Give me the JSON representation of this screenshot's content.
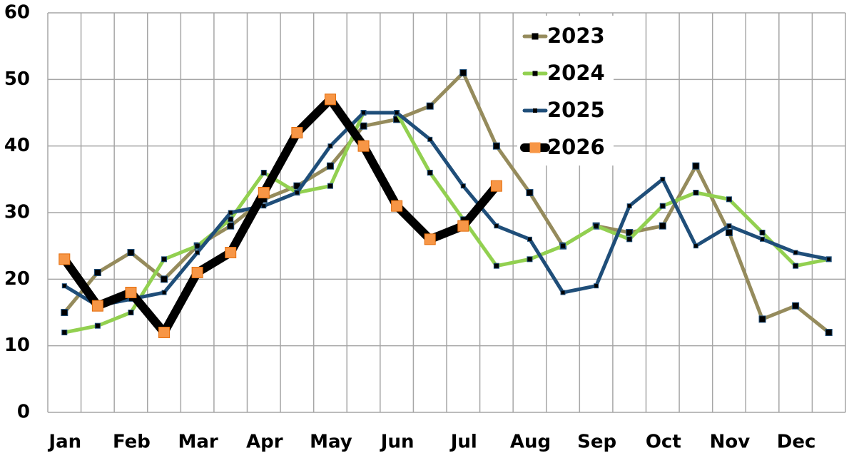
{
  "chart_data": {
    "type": "line",
    "categories": [
      "Jan",
      null,
      "Feb",
      null,
      "Mar",
      null,
      "Apr",
      null,
      "May",
      null,
      "Jun",
      null,
      "Jul",
      null,
      "Aug",
      null,
      "Sep",
      null,
      "Oct",
      null,
      "Nov",
      null,
      "Dec",
      null
    ],
    "series": [
      {
        "name": "2023",
        "color": "#958b5c",
        "line_width": 5,
        "marker_color": "#000000",
        "marker_size": 9,
        "values": [
          15,
          21,
          24,
          20,
          25,
          28,
          32,
          34,
          37,
          43,
          44,
          46,
          51,
          40,
          33,
          25,
          28,
          27,
          28,
          37,
          27,
          14,
          16,
          12
        ]
      },
      {
        "name": "2024",
        "color": "#92d050",
        "line_width": 5,
        "marker_color": "#000000",
        "marker_size": 7,
        "values": [
          12,
          13,
          15,
          23,
          25,
          29,
          36,
          33,
          34,
          45,
          45,
          36,
          29,
          22,
          23,
          25,
          28,
          26,
          31,
          33,
          32,
          27,
          22,
          23
        ]
      },
      {
        "name": "2025",
        "color": "#1f4e79",
        "line_width": 5,
        "marker_color": "#000000",
        "marker_size": 6,
        "values": [
          19,
          16,
          17,
          18,
          24,
          30,
          31,
          33,
          40,
          45,
          45,
          41,
          34,
          28,
          26,
          18,
          19,
          31,
          35,
          25,
          28,
          26,
          24,
          23
        ]
      },
      {
        "name": "2026",
        "color": "#000000",
        "line_width": 12,
        "marker_color": "#f79646",
        "marker_size": 15,
        "values": [
          23,
          16,
          18,
          12,
          21,
          24,
          33,
          42,
          47,
          40,
          31,
          26,
          28,
          34,
          null,
          null,
          null,
          null,
          null,
          null,
          null,
          null,
          null,
          null
        ]
      }
    ],
    "ylim": [
      0,
      60
    ],
    "yticks": [
      0,
      10,
      20,
      30,
      40,
      50,
      60
    ],
    "grid": true,
    "legend": "top-right"
  }
}
